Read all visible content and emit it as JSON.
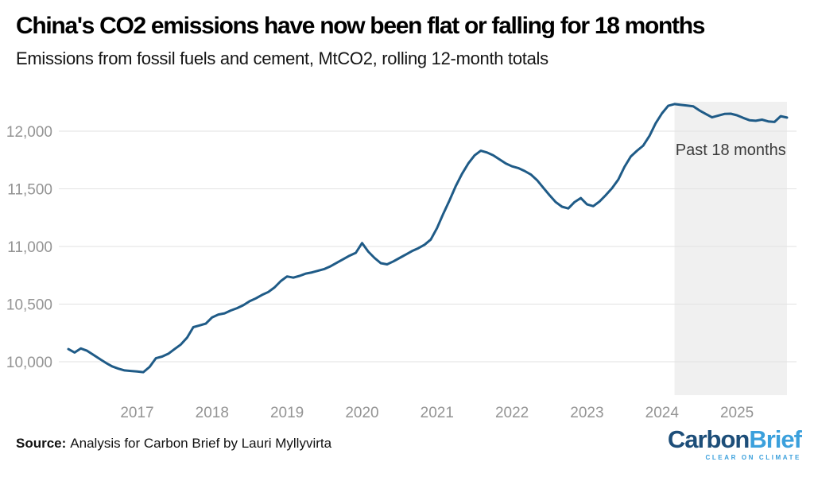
{
  "header": {
    "title": "China's CO2 emissions have now been flat or falling for 18 months",
    "subtitle": "Emissions from fossil fuels and cement, MtCO2, rolling 12-month totals"
  },
  "chart_data": {
    "type": "line",
    "title": "China's CO2 emissions have now been flat or falling for 18 months",
    "subtitle": "Emissions from fossil fuels and cement, MtCO2, rolling 12-month totals",
    "xlabel": "",
    "ylabel": "MtCO2, rolling 12-month totals",
    "ylim": [
      9710,
      12250
    ],
    "grid": true,
    "legend": "none",
    "y_ticks": [
      10000,
      10500,
      11000,
      11500,
      12000
    ],
    "x_ticks": [
      "2017",
      "2018",
      "2019",
      "2020",
      "2021",
      "2022",
      "2023",
      "2024",
      "2025"
    ],
    "annotation": {
      "label": "Past 18 months",
      "region_start": "2024-03",
      "region_end": "2025-09",
      "fill": "#f0f0f0"
    },
    "x": [
      "2016-02",
      "2016-03",
      "2016-04",
      "2016-05",
      "2016-06",
      "2016-07",
      "2016-08",
      "2016-09",
      "2016-10",
      "2016-11",
      "2016-12",
      "2017-01",
      "2017-02",
      "2017-03",
      "2017-04",
      "2017-05",
      "2017-06",
      "2017-07",
      "2017-08",
      "2017-09",
      "2017-10",
      "2017-11",
      "2017-12",
      "2018-01",
      "2018-02",
      "2018-03",
      "2018-04",
      "2018-05",
      "2018-06",
      "2018-07",
      "2018-08",
      "2018-09",
      "2018-10",
      "2018-11",
      "2018-12",
      "2019-01",
      "2019-02",
      "2019-03",
      "2019-04",
      "2019-05",
      "2019-06",
      "2019-07",
      "2019-08",
      "2019-09",
      "2019-10",
      "2019-11",
      "2019-12",
      "2020-01",
      "2020-02",
      "2020-03",
      "2020-04",
      "2020-05",
      "2020-06",
      "2020-07",
      "2020-08",
      "2020-09",
      "2020-10",
      "2020-11",
      "2020-12",
      "2021-01",
      "2021-02",
      "2021-03",
      "2021-04",
      "2021-05",
      "2021-06",
      "2021-07",
      "2021-08",
      "2021-09",
      "2021-10",
      "2021-11",
      "2021-12",
      "2022-01",
      "2022-02",
      "2022-03",
      "2022-04",
      "2022-05",
      "2022-06",
      "2022-07",
      "2022-08",
      "2022-09",
      "2022-10",
      "2022-11",
      "2022-12",
      "2023-01",
      "2023-02",
      "2023-03",
      "2023-04",
      "2023-05",
      "2023-06",
      "2023-07",
      "2023-08",
      "2023-09",
      "2023-10",
      "2023-11",
      "2023-12",
      "2024-01",
      "2024-02",
      "2024-03",
      "2024-04",
      "2024-05",
      "2024-06",
      "2024-07",
      "2024-08",
      "2024-09",
      "2024-10",
      "2024-11",
      "2024-12",
      "2025-01",
      "2025-02",
      "2025-03",
      "2025-04",
      "2025-05",
      "2025-06",
      "2025-07",
      "2025-08",
      "2025-09"
    ],
    "series": [
      {
        "name": "CO2 emissions from fossil fuels and cement (MtCO2)",
        "color": "#1f5b87",
        "values": [
          10110,
          10080,
          10115,
          10095,
          10060,
          10025,
          9990,
          9960,
          9940,
          9925,
          9920,
          9915,
          9910,
          9955,
          10030,
          10045,
          10070,
          10110,
          10150,
          10210,
          10300,
          10315,
          10330,
          10385,
          10410,
          10420,
          10445,
          10465,
          10490,
          10525,
          10550,
          10580,
          10605,
          10645,
          10700,
          10740,
          10730,
          10745,
          10765,
          10775,
          10790,
          10805,
          10830,
          10860,
          10890,
          10920,
          10945,
          11030,
          10955,
          10900,
          10855,
          10845,
          10870,
          10900,
          10930,
          10960,
          10985,
          11015,
          11060,
          11160,
          11285,
          11400,
          11525,
          11630,
          11720,
          11790,
          11830,
          11815,
          11790,
          11755,
          11720,
          11695,
          11680,
          11655,
          11625,
          11575,
          11510,
          11445,
          11385,
          11345,
          11330,
          11385,
          11420,
          11365,
          11350,
          11390,
          11445,
          11505,
          11580,
          11690,
          11780,
          11830,
          11875,
          11960,
          12070,
          12155,
          12220,
          12235,
          12228,
          12222,
          12215,
          12180,
          12150,
          12120,
          12135,
          12150,
          12152,
          12138,
          12115,
          12095,
          12090,
          12100,
          12085,
          12080,
          12130,
          12118
        ]
      }
    ]
  },
  "footer": {
    "source_label": "Source:",
    "source_text": "Analysis for Carbon Brief by Lauri Myllyvirta"
  },
  "logo": {
    "part1": "Carbon",
    "part2": "Brief",
    "tagline": "CLEAR ON CLIMATE",
    "color_dark": "#1d4e79",
    "color_light": "#3ba0dc"
  }
}
